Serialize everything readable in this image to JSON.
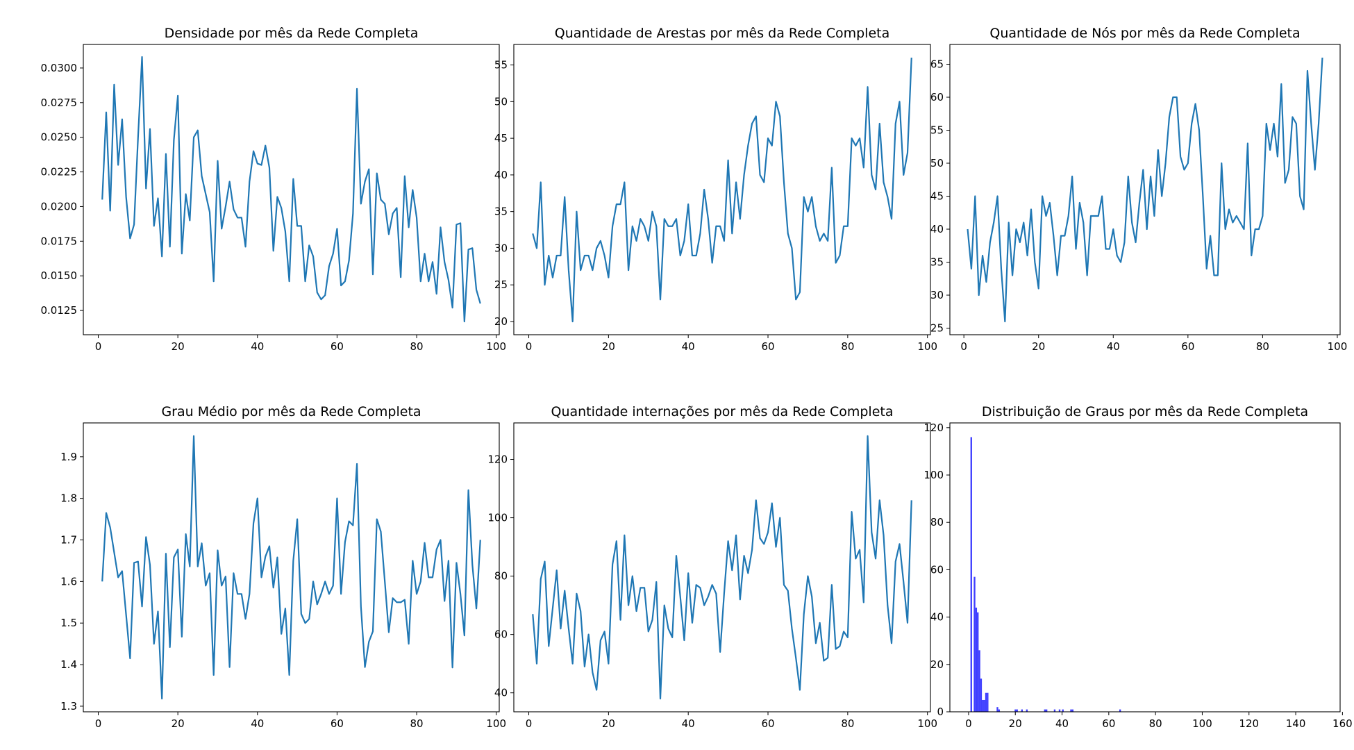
{
  "colors": {
    "line": "#1f77b4",
    "hist": "#0000ff",
    "axis": "#000000",
    "background": "#ffffff"
  },
  "chart_data": [
    {
      "type": "line",
      "title": "Densidade por mês da Rede Completa",
      "xlabel": "",
      "ylabel": "",
      "xlim": [
        -3.75,
        100.75
      ],
      "ylim": [
        0.01075,
        0.0317
      ],
      "xticks": [
        0,
        20,
        40,
        60,
        80,
        100
      ],
      "yticks": [
        0.0125,
        0.015,
        0.0175,
        0.02,
        0.0225,
        0.025,
        0.0275,
        0.03
      ],
      "ytick_labels": [
        "0.0125",
        "0.0150",
        "0.0175",
        "0.0200",
        "0.0225",
        "0.0250",
        "0.0275",
        "0.0300"
      ],
      "grid": false,
      "x": [
        1,
        2,
        3,
        4,
        5,
        6,
        7,
        8,
        9,
        10,
        11,
        12,
        13,
        14,
        15,
        16,
        17,
        18,
        19,
        20,
        21,
        22,
        23,
        24,
        25,
        26,
        27,
        28,
        29,
        30,
        31,
        32,
        33,
        34,
        35,
        36,
        37,
        38,
        39,
        40,
        41,
        42,
        43,
        44,
        45,
        46,
        47,
        48,
        49,
        50,
        51,
        52,
        53,
        54,
        55,
        56,
        57,
        58,
        59,
        60,
        61,
        62,
        63,
        64,
        65,
        66,
        67,
        68,
        69,
        70,
        71,
        72,
        73,
        74,
        75,
        76,
        77,
        78,
        79,
        80,
        81,
        82,
        83,
        84,
        85,
        86,
        87,
        88,
        89,
        90,
        91,
        92,
        93,
        94,
        95,
        96
      ],
      "values": [
        0.0205,
        0.0268,
        0.0197,
        0.0288,
        0.023,
        0.0263,
        0.0207,
        0.0177,
        0.0187,
        0.025,
        0.0308,
        0.0213,
        0.0256,
        0.0186,
        0.0206,
        0.0164,
        0.0238,
        0.0171,
        0.0248,
        0.028,
        0.0166,
        0.0209,
        0.019,
        0.025,
        0.0255,
        0.0222,
        0.0209,
        0.0196,
        0.0146,
        0.0233,
        0.0184,
        0.02,
        0.0218,
        0.0198,
        0.0192,
        0.0192,
        0.0171,
        0.0218,
        0.024,
        0.0231,
        0.023,
        0.0244,
        0.0228,
        0.0168,
        0.0207,
        0.0199,
        0.0182,
        0.0146,
        0.022,
        0.0186,
        0.0186,
        0.0146,
        0.0172,
        0.0164,
        0.0138,
        0.0133,
        0.0136,
        0.0157,
        0.0166,
        0.0184,
        0.0143,
        0.0146,
        0.0161,
        0.0195,
        0.0285,
        0.0202,
        0.0218,
        0.0227,
        0.0151,
        0.0224,
        0.0205,
        0.0202,
        0.018,
        0.0195,
        0.0199,
        0.0149,
        0.0222,
        0.0185,
        0.0212,
        0.0192,
        0.0146,
        0.0166,
        0.0146,
        0.016,
        0.0137,
        0.0185,
        0.016,
        0.0147,
        0.0127,
        0.0187,
        0.0188,
        0.0117,
        0.0169,
        0.017,
        0.014,
        0.013
      ]
    },
    {
      "type": "line",
      "title": "Quantidade de Arestas por mês da Rede Completa",
      "xlabel": "",
      "ylabel": "",
      "xlim": [
        -3.75,
        100.75
      ],
      "ylim": [
        18.2,
        57.8
      ],
      "xticks": [
        0,
        20,
        40,
        60,
        80,
        100
      ],
      "yticks": [
        20,
        25,
        30,
        35,
        40,
        45,
        50,
        55
      ],
      "ytick_labels": [
        "20",
        "25",
        "30",
        "35",
        "40",
        "45",
        "50",
        "55"
      ],
      "grid": false,
      "x": [
        1,
        2,
        3,
        4,
        5,
        6,
        7,
        8,
        9,
        10,
        11,
        12,
        13,
        14,
        15,
        16,
        17,
        18,
        19,
        20,
        21,
        22,
        23,
        24,
        25,
        26,
        27,
        28,
        29,
        30,
        31,
        32,
        33,
        34,
        35,
        36,
        37,
        38,
        39,
        40,
        41,
        42,
        43,
        44,
        45,
        46,
        47,
        48,
        49,
        50,
        51,
        52,
        53,
        54,
        55,
        56,
        57,
        58,
        59,
        60,
        61,
        62,
        63,
        64,
        65,
        66,
        67,
        68,
        69,
        70,
        71,
        72,
        73,
        74,
        75,
        76,
        77,
        78,
        79,
        80,
        81,
        82,
        83,
        84,
        85,
        86,
        87,
        88,
        89,
        90,
        91,
        92,
        93,
        94,
        95,
        96
      ],
      "values": [
        32,
        30,
        39,
        25,
        29,
        26,
        29,
        29,
        37,
        27,
        20,
        35,
        27,
        29,
        29,
        27,
        30,
        31,
        29,
        26,
        33,
        36,
        36,
        39,
        27,
        33,
        31,
        34,
        33,
        31,
        35,
        33,
        23,
        34,
        33,
        33,
        34,
        29,
        31,
        36,
        29,
        29,
        32,
        38,
        34,
        28,
        33,
        33,
        31,
        42,
        32,
        39,
        34,
        40,
        44,
        47,
        48,
        40,
        39,
        45,
        44,
        50,
        48,
        39,
        32,
        30,
        23,
        24,
        37,
        35,
        37,
        33,
        31,
        32,
        31,
        41,
        28,
        29,
        33,
        33,
        45,
        44,
        45,
        41,
        52,
        40,
        38,
        47,
        39,
        37,
        34,
        47,
        50,
        40,
        43,
        56
      ]
    },
    {
      "type": "line",
      "title": "Quantidade de Nós por mês da Rede Completa",
      "xlabel": "",
      "ylabel": "",
      "xlim": [
        -3.75,
        100.75
      ],
      "ylim": [
        24.0,
        68.0
      ],
      "xticks": [
        0,
        20,
        40,
        60,
        80,
        100
      ],
      "yticks": [
        25,
        30,
        35,
        40,
        45,
        50,
        55,
        60,
        65
      ],
      "ytick_labels": [
        "25",
        "30",
        "35",
        "40",
        "45",
        "50",
        "55",
        "60",
        "65"
      ],
      "grid": false,
      "x": [
        1,
        2,
        3,
        4,
        5,
        6,
        7,
        8,
        9,
        10,
        11,
        12,
        13,
        14,
        15,
        16,
        17,
        18,
        19,
        20,
        21,
        22,
        23,
        24,
        25,
        26,
        27,
        28,
        29,
        30,
        31,
        32,
        33,
        34,
        35,
        36,
        37,
        38,
        39,
        40,
        41,
        42,
        43,
        44,
        45,
        46,
        47,
        48,
        49,
        50,
        51,
        52,
        53,
        54,
        55,
        56,
        57,
        58,
        59,
        60,
        61,
        62,
        63,
        64,
        65,
        66,
        67,
        68,
        69,
        70,
        71,
        72,
        73,
        74,
        75,
        76,
        77,
        78,
        79,
        80,
        81,
        82,
        83,
        84,
        85,
        86,
        87,
        88,
        89,
        90,
        91,
        92,
        93,
        94,
        95,
        96
      ],
      "values": [
        40,
        34,
        45,
        30,
        36,
        32,
        38,
        41,
        45,
        34,
        26,
        41,
        33,
        40,
        38,
        41,
        36,
        43,
        35,
        31,
        45,
        42,
        44,
        39,
        33,
        39,
        39,
        42,
        48,
        37,
        44,
        41,
        33,
        42,
        42,
        42,
        45,
        37,
        37,
        40,
        36,
        35,
        38,
        48,
        41,
        38,
        44,
        49,
        40,
        48,
        42,
        52,
        45,
        50,
        57,
        60,
        60,
        51,
        49,
        50,
        56,
        59,
        55,
        45,
        34,
        39,
        33,
        33,
        50,
        40,
        43,
        41,
        42,
        41,
        40,
        53,
        36,
        40,
        40,
        42,
        56,
        52,
        56,
        51,
        62,
        47,
        49,
        57,
        56,
        45,
        43,
        64,
        56,
        49,
        56,
        66
      ]
    },
    {
      "type": "line",
      "title": "Grau Médio por mês da Rede Completa",
      "xlabel": "",
      "ylabel": "",
      "xlim": [
        -3.75,
        100.75
      ],
      "ylim": [
        1.2865,
        1.9815
      ],
      "xticks": [
        0,
        20,
        40,
        60,
        80,
        100
      ],
      "yticks": [
        1.3,
        1.4,
        1.5,
        1.6,
        1.7,
        1.8,
        1.9
      ],
      "ytick_labels": [
        "1.3",
        "1.4",
        "1.5",
        "1.6",
        "1.7",
        "1.8",
        "1.9"
      ],
      "grid": false,
      "x": [
        1,
        2,
        3,
        4,
        5,
        6,
        7,
        8,
        9,
        10,
        11,
        12,
        13,
        14,
        15,
        16,
        17,
        18,
        19,
        20,
        21,
        22,
        23,
        24,
        25,
        26,
        27,
        28,
        29,
        30,
        31,
        32,
        33,
        34,
        35,
        36,
        37,
        38,
        39,
        40,
        41,
        42,
        43,
        44,
        45,
        46,
        47,
        48,
        49,
        50,
        51,
        52,
        53,
        54,
        55,
        56,
        57,
        58,
        59,
        60,
        61,
        62,
        63,
        64,
        65,
        66,
        67,
        68,
        69,
        70,
        71,
        72,
        73,
        74,
        75,
        76,
        77,
        78,
        79,
        80,
        81,
        82,
        83,
        84,
        85,
        86,
        87,
        88,
        89,
        90,
        91,
        92,
        93,
        94,
        95,
        96
      ],
      "values": [
        1.6,
        1.765,
        1.73,
        1.67,
        1.61,
        1.625,
        1.52,
        1.415,
        1.645,
        1.648,
        1.54,
        1.707,
        1.64,
        1.45,
        1.528,
        1.318,
        1.667,
        1.442,
        1.658,
        1.677,
        1.467,
        1.714,
        1.636,
        1.95,
        1.636,
        1.692,
        1.59,
        1.62,
        1.375,
        1.675,
        1.59,
        1.612,
        1.394,
        1.62,
        1.57,
        1.57,
        1.51,
        1.57,
        1.74,
        1.8,
        1.61,
        1.66,
        1.685,
        1.585,
        1.658,
        1.474,
        1.535,
        1.375,
        1.65,
        1.75,
        1.522,
        1.5,
        1.51,
        1.6,
        1.545,
        1.57,
        1.6,
        1.57,
        1.59,
        1.8,
        1.57,
        1.695,
        1.745,
        1.735,
        1.883,
        1.54,
        1.394,
        1.455,
        1.48,
        1.75,
        1.72,
        1.6,
        1.478,
        1.56,
        1.55,
        1.55,
        1.556,
        1.45,
        1.65,
        1.57,
        1.6,
        1.693,
        1.61,
        1.61,
        1.677,
        1.7,
        1.553,
        1.65,
        1.393,
        1.645,
        1.57,
        1.47,
        1.82,
        1.64,
        1.535,
        1.7
      ]
    },
    {
      "type": "line",
      "title": "Quantidade internações por mês da Rede Completa",
      "xlabel": "",
      "ylabel": "",
      "xlim": [
        -3.75,
        100.75
      ],
      "ylim": [
        33.5,
        132.5
      ],
      "xticks": [
        0,
        20,
        40,
        60,
        80,
        100
      ],
      "yticks": [
        40,
        60,
        80,
        100,
        120
      ],
      "ytick_labels": [
        "40",
        "60",
        "80",
        "100",
        "120"
      ],
      "grid": false,
      "x": [
        1,
        2,
        3,
        4,
        5,
        6,
        7,
        8,
        9,
        10,
        11,
        12,
        13,
        14,
        15,
        16,
        17,
        18,
        19,
        20,
        21,
        22,
        23,
        24,
        25,
        26,
        27,
        28,
        29,
        30,
        31,
        32,
        33,
        34,
        35,
        36,
        37,
        38,
        39,
        40,
        41,
        42,
        43,
        44,
        45,
        46,
        47,
        48,
        49,
        50,
        51,
        52,
        53,
        54,
        55,
        56,
        57,
        58,
        59,
        60,
        61,
        62,
        63,
        64,
        65,
        66,
        67,
        68,
        69,
        70,
        71,
        72,
        73,
        74,
        75,
        76,
        77,
        78,
        79,
        80,
        81,
        82,
        83,
        84,
        85,
        86,
        87,
        88,
        89,
        90,
        91,
        92,
        93,
        94,
        95,
        96
      ],
      "values": [
        67,
        50,
        79,
        85,
        56,
        69,
        82,
        62,
        75,
        62,
        50,
        74,
        68,
        49,
        60,
        47,
        41,
        58,
        61,
        50,
        84,
        92,
        65,
        94,
        70,
        80,
        68,
        76,
        76,
        61,
        65,
        78,
        38,
        70,
        62,
        59,
        87,
        73,
        58,
        81,
        64,
        77,
        76,
        70,
        73,
        77,
        74,
        54,
        74,
        92,
        82,
        94,
        72,
        87,
        81,
        89,
        106,
        93,
        91,
        95,
        105,
        90,
        100,
        77,
        75,
        62,
        52,
        41,
        67,
        80,
        73,
        57,
        64,
        51,
        52,
        77,
        55,
        56,
        61,
        59,
        102,
        86,
        89,
        71,
        128,
        95,
        86,
        106,
        94,
        70,
        57,
        85,
        91,
        78,
        64,
        106
      ]
    },
    {
      "type": "histogram",
      "title": "Distribuição de Graus por mês da Rede Completa",
      "xlabel": "",
      "ylabel": "",
      "xlim": [
        -8.0,
        159.0
      ],
      "ylim": [
        0,
        122
      ],
      "xticks": [
        0,
        20,
        40,
        60,
        80,
        100,
        120,
        140,
        160
      ],
      "yticks": [
        0,
        20,
        40,
        60,
        80,
        100,
        120
      ],
      "ytick_labels": [
        "0",
        "20",
        "40",
        "60",
        "80",
        "100",
        "120"
      ],
      "grid": false,
      "bin_width": 0.7,
      "bins": [
        0.1,
        0.8,
        1.5,
        2.2,
        2.9,
        3.6,
        4.3,
        5.0,
        5.7,
        6.4,
        7.1,
        7.8,
        8.5,
        9.2,
        12.0,
        12.7,
        19.7,
        20.4,
        22.5,
        24.6,
        32.3,
        33.0,
        36.5,
        38.6,
        40.0,
        43.5,
        44.2,
        64.5
      ],
      "values": [
        0,
        116,
        0,
        57,
        44,
        42,
        26,
        14,
        5,
        5,
        8,
        8,
        0,
        0,
        2,
        1,
        1,
        1,
        1,
        1,
        1,
        1,
        1,
        1,
        1,
        1,
        1,
        1
      ]
    }
  ]
}
